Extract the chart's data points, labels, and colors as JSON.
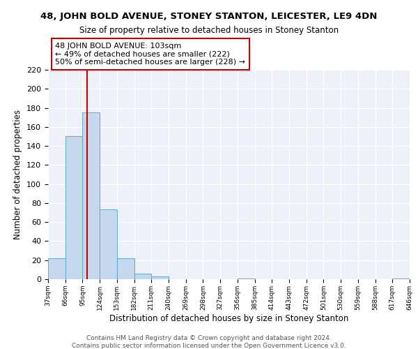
{
  "title_main": "48, JOHN BOLD AVENUE, STONEY STANTON, LEICESTER, LE9 4DN",
  "title_sub": "Size of property relative to detached houses in Stoney Stanton",
  "xlabel": "Distribution of detached houses by size in Stoney Stanton",
  "ylabel": "Number of detached properties",
  "bin_edges": [
    37,
    66,
    95,
    124,
    153,
    182,
    211,
    240,
    269,
    298,
    327,
    356,
    385,
    414,
    443,
    472,
    501,
    530,
    559,
    588,
    617,
    646
  ],
  "bar_heights": [
    22,
    150,
    175,
    73,
    22,
    6,
    3,
    0,
    0,
    0,
    0,
    1,
    0,
    0,
    0,
    0,
    0,
    0,
    0,
    0,
    1
  ],
  "bar_color": "#c5d8ed",
  "bar_edge_color": "#6aaed6",
  "property_size": 103,
  "vline_color": "#cc0000",
  "ylim": [
    0,
    220
  ],
  "yticks": [
    0,
    20,
    40,
    60,
    80,
    100,
    120,
    140,
    160,
    180,
    200,
    220
  ],
  "annotation_text": "48 JOHN BOLD AVENUE: 103sqm\n← 49% of detached houses are smaller (222)\n50% of semi-detached houses are larger (228) →",
  "bg_color": "#eef2f8",
  "grid_color": "#ffffff",
  "footer_line1": "Contains HM Land Registry data © Crown copyright and database right 2024.",
  "footer_line2": "Contains public sector information licensed under the Open Government Licence v3.0.",
  "tick_labels": [
    "37sqm",
    "66sqm",
    "95sqm",
    "124sqm",
    "153sqm",
    "182sqm",
    "211sqm",
    "240sqm",
    "269sqm",
    "298sqm",
    "327sqm",
    "356sqm",
    "385sqm",
    "414sqm",
    "443sqm",
    "472sqm",
    "501sqm",
    "530sqm",
    "559sqm",
    "588sqm",
    "617sqm",
    "646sqm"
  ]
}
